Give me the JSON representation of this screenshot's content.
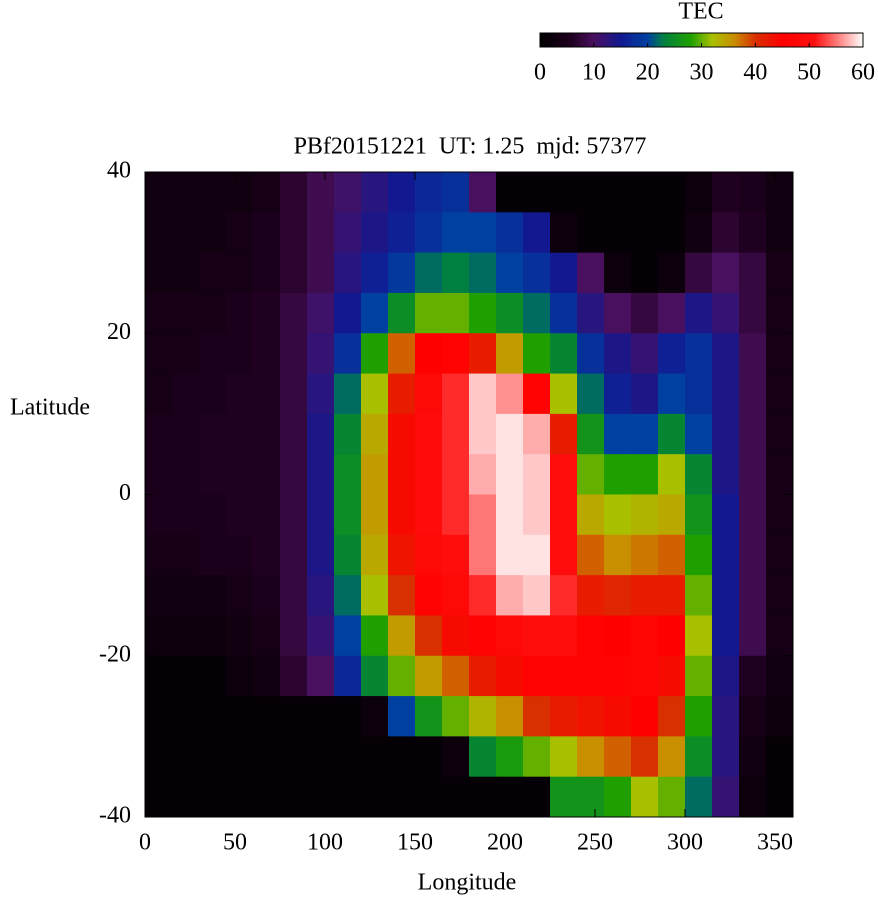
{
  "chart_data": {
    "type": "heatmap",
    "title": "PBf20151221  UT: 1.25  mjd: 57377",
    "x_label": "Longitude",
    "y_label": "Latitude",
    "xlim": [
      0,
      360
    ],
    "ylim": [
      -40,
      40
    ],
    "xticks": [
      0,
      50,
      100,
      150,
      200,
      250,
      300,
      350
    ],
    "yticks": [
      -40,
      -20,
      0,
      20,
      40
    ],
    "x": [
      7.5,
      22.5,
      37.5,
      52.5,
      67.5,
      82.5,
      97.5,
      112.5,
      127.5,
      142.5,
      157.5,
      172.5,
      187.5,
      202.5,
      217.5,
      232.5,
      247.5,
      262.5,
      277.5,
      292.5,
      307.5,
      322.5,
      337.5,
      352.5
    ],
    "y": [
      37.5,
      32.5,
      27.5,
      22.5,
      17.5,
      12.5,
      7.5,
      2.5,
      -2.5,
      -7.5,
      -12.5,
      -17.5,
      -22.5,
      -27.5,
      -32.5,
      -37.5
    ],
    "z": [
      [
        3,
        3,
        3,
        3,
        4,
        7,
        9,
        11,
        13,
        15,
        17,
        18,
        10,
        1,
        1,
        1,
        1,
        1,
        1,
        1,
        2,
        6,
        5,
        3
      ],
      [
        3,
        3,
        3,
        4,
        5,
        7,
        9,
        12,
        14,
        16,
        18,
        20,
        20,
        18,
        15,
        2,
        1,
        1,
        1,
        1,
        3,
        7,
        6,
        3
      ],
      [
        3,
        3,
        4,
        4,
        5,
        7,
        9,
        13,
        16,
        19,
        22,
        23,
        22,
        20,
        18,
        15,
        10,
        2,
        1,
        2,
        8,
        10,
        8,
        4
      ],
      [
        4,
        4,
        4,
        5,
        6,
        8,
        11,
        15,
        20,
        25,
        30,
        30,
        28,
        25,
        22,
        18,
        13,
        10,
        8,
        10,
        14,
        12,
        8,
        4
      ],
      [
        4,
        4,
        5,
        5,
        6,
        8,
        12,
        18,
        28,
        38,
        45,
        46,
        42,
        35,
        28,
        24,
        18,
        14,
        12,
        16,
        18,
        14,
        9,
        4
      ],
      [
        4,
        5,
        5,
        6,
        6,
        8,
        13,
        22,
        32,
        42,
        48,
        52,
        58,
        56,
        46,
        32,
        22,
        16,
        14,
        20,
        18,
        14,
        9,
        4
      ],
      [
        5,
        5,
        6,
        6,
        6,
        8,
        14,
        24,
        34,
        44,
        49,
        52,
        58,
        59,
        57,
        42,
        26,
        20,
        20,
        24,
        20,
        14,
        9,
        4
      ],
      [
        5,
        5,
        6,
        6,
        6,
        8,
        14,
        25,
        35,
        44,
        49,
        52,
        57,
        59,
        58,
        50,
        30,
        28,
        28,
        32,
        24,
        14,
        9,
        4
      ],
      [
        5,
        5,
        5,
        6,
        6,
        8,
        14,
        25,
        35,
        44,
        49,
        52,
        55,
        59,
        58,
        50,
        34,
        32,
        33,
        34,
        26,
        15,
        9,
        4
      ],
      [
        4,
        4,
        5,
        5,
        6,
        8,
        14,
        24,
        34,
        43,
        48,
        50,
        55,
        59,
        59,
        50,
        38,
        36,
        37,
        38,
        28,
        15,
        9,
        4
      ],
      [
        3,
        3,
        3,
        4,
        5,
        8,
        13,
        22,
        32,
        40,
        46,
        48,
        52,
        57,
        58,
        52,
        42,
        41,
        42,
        42,
        30,
        15,
        9,
        4
      ],
      [
        2,
        2,
        2,
        3,
        4,
        8,
        12,
        20,
        28,
        35,
        40,
        44,
        46,
        48,
        50,
        50,
        46,
        45,
        47,
        45,
        32,
        15,
        9,
        4
      ],
      [
        1,
        1,
        1,
        2,
        3,
        7,
        10,
        17,
        24,
        30,
        35,
        38,
        42,
        44,
        46,
        46,
        46,
        46,
        47,
        44,
        30,
        14,
        6,
        3
      ],
      [
        1,
        1,
        1,
        1,
        1,
        1,
        1,
        1,
        2,
        20,
        26,
        30,
        33,
        36,
        40,
        42,
        43,
        44,
        45,
        40,
        28,
        13,
        4,
        2
      ],
      [
        1,
        1,
        1,
        1,
        1,
        1,
        1,
        1,
        1,
        1,
        1,
        2,
        24,
        27,
        30,
        32,
        36,
        38,
        40,
        36,
        25,
        13,
        3,
        1
      ],
      [
        1,
        1,
        1,
        1,
        1,
        1,
        1,
        1,
        1,
        1,
        1,
        1,
        1,
        1,
        1,
        26,
        26,
        28,
        32,
        30,
        22,
        12,
        2,
        1
      ]
    ],
    "colorscale": [
      [
        0,
        "#000000"
      ],
      [
        6,
        "#200020"
      ],
      [
        10,
        "#4a1060"
      ],
      [
        15,
        "#121890"
      ],
      [
        20,
        "#0040a0"
      ],
      [
        23,
        "#008040"
      ],
      [
        28,
        "#20a000"
      ],
      [
        32,
        "#a8c000"
      ],
      [
        36,
        "#c89000"
      ],
      [
        40,
        "#d83000"
      ],
      [
        45,
        "#ff0000"
      ],
      [
        51,
        "#ff1010"
      ],
      [
        56,
        "#ff9090"
      ],
      [
        60,
        "#ffffff"
      ]
    ],
    "colorbar": {
      "title": "TEC",
      "lim": [
        0,
        60
      ],
      "ticks": [
        0,
        10,
        20,
        30,
        40,
        50,
        60
      ]
    }
  }
}
